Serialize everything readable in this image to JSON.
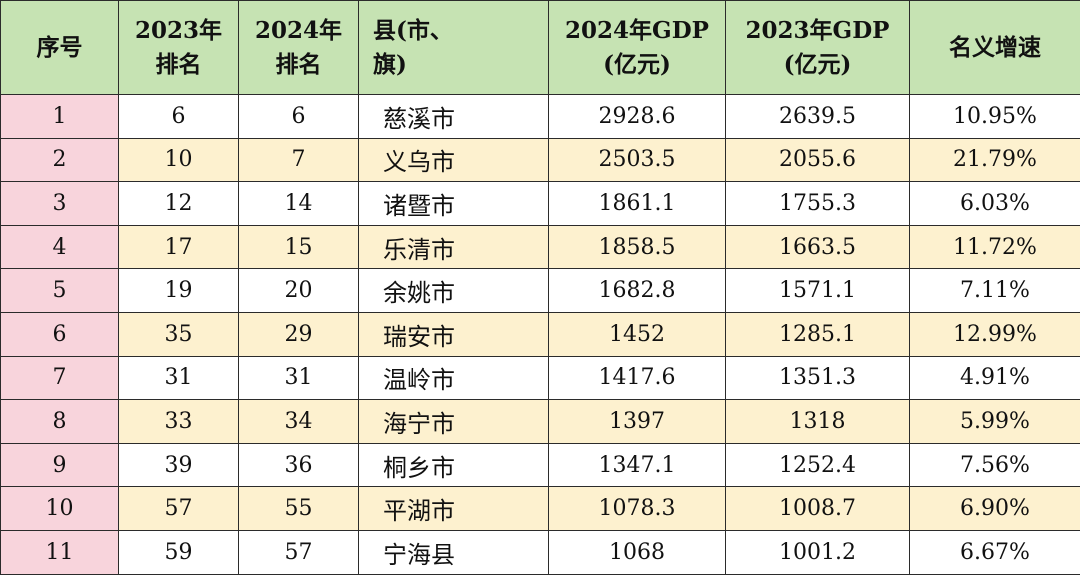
{
  "table": {
    "headers": [
      {
        "lines": [
          "序号"
        ]
      },
      {
        "lines": [
          "2023年",
          "排名"
        ]
      },
      {
        "lines": [
          "2024年",
          "排名"
        ]
      },
      {
        "lines": [
          "县(市、",
          "旗)"
        ]
      },
      {
        "lines": [
          "2024年GDP",
          "(亿元)"
        ]
      },
      {
        "lines": [
          "2023年GDP",
          "(亿元)"
        ]
      },
      {
        "lines": [
          "名义增速"
        ]
      }
    ],
    "rows": [
      {
        "index": "1",
        "rank_2023": "6",
        "rank_2024": "6",
        "county": "慈溪市",
        "gdp_2024": "2928.6",
        "gdp_2023": "2639.5",
        "growth": "10.95%"
      },
      {
        "index": "2",
        "rank_2023": "10",
        "rank_2024": "7",
        "county": "义乌市",
        "gdp_2024": "2503.5",
        "gdp_2023": "2055.6",
        "growth": "21.79%"
      },
      {
        "index": "3",
        "rank_2023": "12",
        "rank_2024": "14",
        "county": "诸暨市",
        "gdp_2024": "1861.1",
        "gdp_2023": "1755.3",
        "growth": "6.03%"
      },
      {
        "index": "4",
        "rank_2023": "17",
        "rank_2024": "15",
        "county": "乐清市",
        "gdp_2024": "1858.5",
        "gdp_2023": "1663.5",
        "growth": "11.72%"
      },
      {
        "index": "5",
        "rank_2023": "19",
        "rank_2024": "20",
        "county": "余姚市",
        "gdp_2024": "1682.8",
        "gdp_2023": "1571.1",
        "growth": "7.11%"
      },
      {
        "index": "6",
        "rank_2023": "35",
        "rank_2024": "29",
        "county": "瑞安市",
        "gdp_2024": "1452",
        "gdp_2023": "1285.1",
        "growth": "12.99%"
      },
      {
        "index": "7",
        "rank_2023": "31",
        "rank_2024": "31",
        "county": "温岭市",
        "gdp_2024": "1417.6",
        "gdp_2023": "1351.3",
        "growth": "4.91%"
      },
      {
        "index": "8",
        "rank_2023": "33",
        "rank_2024": "34",
        "county": "海宁市",
        "gdp_2024": "1397",
        "gdp_2023": "1318",
        "growth": "5.99%"
      },
      {
        "index": "9",
        "rank_2023": "39",
        "rank_2024": "36",
        "county": "桐乡市",
        "gdp_2024": "1347.1",
        "gdp_2023": "1252.4",
        "growth": "7.56%"
      },
      {
        "index": "10",
        "rank_2023": "57",
        "rank_2024": "55",
        "county": "平湖市",
        "gdp_2024": "1078.3",
        "gdp_2023": "1008.7",
        "growth": "6.90%"
      },
      {
        "index": "11",
        "rank_2023": "59",
        "rank_2024": "57",
        "county": "宁海县",
        "gdp_2024": "1068",
        "gdp_2023": "1001.2",
        "growth": "6.67%"
      }
    ]
  },
  "colors": {
    "header_bg": "#c6e3b3",
    "index_col_bg": "#f8d4dc",
    "alt_row_bg": "#fdf1cf",
    "row_bg": "#ffffff",
    "border": "#2b2b2b"
  }
}
